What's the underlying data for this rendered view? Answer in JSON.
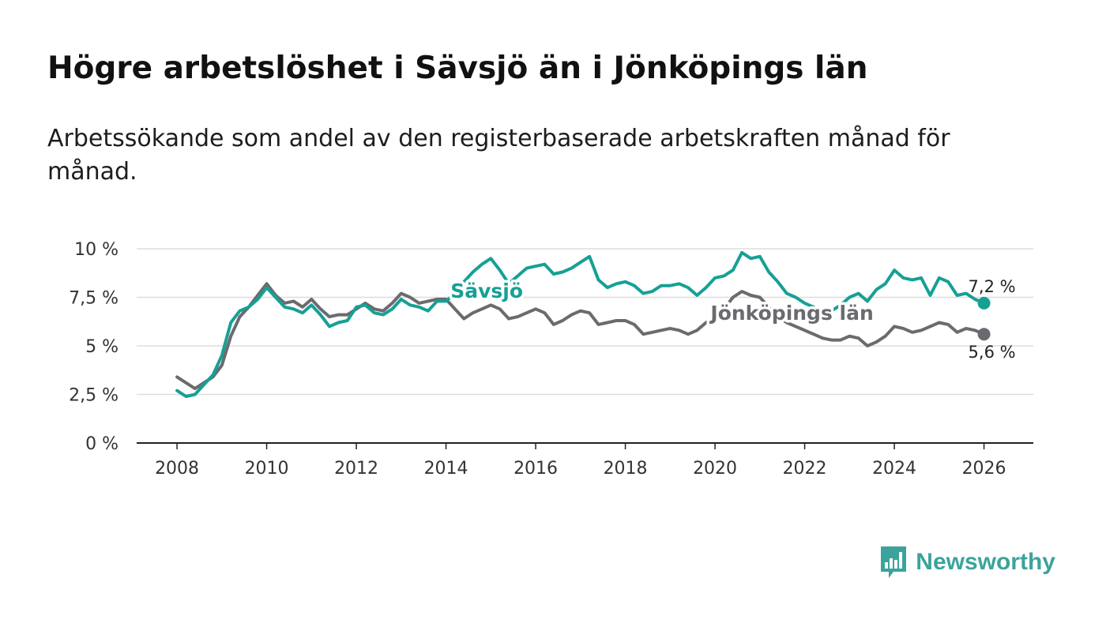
{
  "header": {
    "title": "Högre arbetslöshet i Sävsjö än i Jönköpings län",
    "subtitle": "Arbetssökande som andel av den registerbaserade arbetskraften månad för månad."
  },
  "colors": {
    "savsjo": "#16a095",
    "jonkoping": "#6b6a6e",
    "grid": "#dddddd",
    "axis": "#222222"
  },
  "logo": {
    "name": "Newsworthy",
    "icon": "newsworthy-bar-chart-icon"
  },
  "chart_data": {
    "type": "line",
    "title": "Högre arbetslöshet i Sävsjö än i Jönköpings län",
    "xlabel": "",
    "ylabel": "",
    "xlim": [
      2007.1,
      2027.1
    ],
    "ylim": [
      0,
      10
    ],
    "yticks": [
      {
        "value": 0,
        "label": "0 %"
      },
      {
        "value": 2.5,
        "label": "2,5 %"
      },
      {
        "value": 5,
        "label": "5 %"
      },
      {
        "value": 7.5,
        "label": "7,5 %"
      },
      {
        "value": 10,
        "label": "10 %"
      }
    ],
    "xticks": [
      {
        "value": 2008,
        "label": "2008"
      },
      {
        "value": 2010,
        "label": "2010"
      },
      {
        "value": 2012,
        "label": "2012"
      },
      {
        "value": 2014,
        "label": "2014"
      },
      {
        "value": 2016,
        "label": "2016"
      },
      {
        "value": 2018,
        "label": "2018"
      },
      {
        "value": 2020,
        "label": "2020"
      },
      {
        "value": 2022,
        "label": "2022"
      },
      {
        "value": 2024,
        "label": "2024"
      },
      {
        "value": 2026,
        "label": "2026"
      }
    ],
    "grid": true,
    "series": [
      {
        "name": "Sävsjö",
        "end_label": "7,2 %",
        "points": [
          [
            2008.0,
            2.7
          ],
          [
            2008.2,
            2.4
          ],
          [
            2008.4,
            2.5
          ],
          [
            2008.6,
            3.0
          ],
          [
            2008.8,
            3.5
          ],
          [
            2009.0,
            4.5
          ],
          [
            2009.2,
            6.2
          ],
          [
            2009.4,
            6.8
          ],
          [
            2009.6,
            7.0
          ],
          [
            2009.8,
            7.4
          ],
          [
            2010.0,
            8.0
          ],
          [
            2010.2,
            7.5
          ],
          [
            2010.4,
            7.0
          ],
          [
            2010.6,
            6.9
          ],
          [
            2010.8,
            6.7
          ],
          [
            2011.0,
            7.1
          ],
          [
            2011.2,
            6.6
          ],
          [
            2011.4,
            6.0
          ],
          [
            2011.6,
            6.2
          ],
          [
            2011.8,
            6.3
          ],
          [
            2012.0,
            7.0
          ],
          [
            2012.2,
            7.1
          ],
          [
            2012.4,
            6.7
          ],
          [
            2012.6,
            6.6
          ],
          [
            2012.8,
            6.9
          ],
          [
            2013.0,
            7.4
          ],
          [
            2013.2,
            7.1
          ],
          [
            2013.4,
            7.0
          ],
          [
            2013.6,
            6.8
          ],
          [
            2013.8,
            7.3
          ],
          [
            2014.0,
            7.3
          ],
          [
            2014.2,
            7.7
          ],
          [
            2014.4,
            8.3
          ],
          [
            2014.6,
            8.8
          ],
          [
            2014.8,
            9.2
          ],
          [
            2015.0,
            9.5
          ],
          [
            2015.2,
            8.9
          ],
          [
            2015.4,
            8.2
          ],
          [
            2015.6,
            8.6
          ],
          [
            2015.8,
            9.0
          ],
          [
            2016.0,
            9.1
          ],
          [
            2016.2,
            9.2
          ],
          [
            2016.4,
            8.7
          ],
          [
            2016.6,
            8.8
          ],
          [
            2016.8,
            9.0
          ],
          [
            2017.0,
            9.3
          ],
          [
            2017.2,
            9.6
          ],
          [
            2017.4,
            8.4
          ],
          [
            2017.6,
            8.0
          ],
          [
            2017.8,
            8.2
          ],
          [
            2018.0,
            8.3
          ],
          [
            2018.2,
            8.1
          ],
          [
            2018.4,
            7.7
          ],
          [
            2018.6,
            7.8
          ],
          [
            2018.8,
            8.1
          ],
          [
            2019.0,
            8.1
          ],
          [
            2019.2,
            8.2
          ],
          [
            2019.4,
            8.0
          ],
          [
            2019.6,
            7.6
          ],
          [
            2019.8,
            8.0
          ],
          [
            2020.0,
            8.5
          ],
          [
            2020.2,
            8.6
          ],
          [
            2020.4,
            8.9
          ],
          [
            2020.6,
            9.8
          ],
          [
            2020.8,
            9.5
          ],
          [
            2021.0,
            9.6
          ],
          [
            2021.2,
            8.8
          ],
          [
            2021.4,
            8.3
          ],
          [
            2021.6,
            7.7
          ],
          [
            2021.8,
            7.5
          ],
          [
            2022.0,
            7.2
          ],
          [
            2022.2,
            7.0
          ],
          [
            2022.4,
            6.6
          ],
          [
            2022.6,
            6.8
          ],
          [
            2022.8,
            7.1
          ],
          [
            2023.0,
            7.5
          ],
          [
            2023.2,
            7.7
          ],
          [
            2023.4,
            7.3
          ],
          [
            2023.6,
            7.9
          ],
          [
            2023.8,
            8.2
          ],
          [
            2024.0,
            8.9
          ],
          [
            2024.2,
            8.5
          ],
          [
            2024.4,
            8.4
          ],
          [
            2024.6,
            8.5
          ],
          [
            2024.8,
            7.6
          ],
          [
            2025.0,
            8.5
          ],
          [
            2025.2,
            8.3
          ],
          [
            2025.4,
            7.6
          ],
          [
            2025.6,
            7.7
          ],
          [
            2025.8,
            7.4
          ],
          [
            2026.0,
            7.2
          ]
        ]
      },
      {
        "name": "Jönköpings län",
        "end_label": "5,6 %",
        "points": [
          [
            2008.0,
            3.4
          ],
          [
            2008.2,
            3.1
          ],
          [
            2008.4,
            2.8
          ],
          [
            2008.6,
            3.1
          ],
          [
            2008.8,
            3.4
          ],
          [
            2009.0,
            4.0
          ],
          [
            2009.2,
            5.5
          ],
          [
            2009.4,
            6.5
          ],
          [
            2009.6,
            7.0
          ],
          [
            2009.8,
            7.6
          ],
          [
            2010.0,
            8.2
          ],
          [
            2010.2,
            7.6
          ],
          [
            2010.4,
            7.2
          ],
          [
            2010.6,
            7.3
          ],
          [
            2010.8,
            7.0
          ],
          [
            2011.0,
            7.4
          ],
          [
            2011.2,
            6.9
          ],
          [
            2011.4,
            6.5
          ],
          [
            2011.6,
            6.6
          ],
          [
            2011.8,
            6.6
          ],
          [
            2012.0,
            6.9
          ],
          [
            2012.2,
            7.2
          ],
          [
            2012.4,
            6.9
          ],
          [
            2012.6,
            6.8
          ],
          [
            2012.8,
            7.2
          ],
          [
            2013.0,
            7.7
          ],
          [
            2013.2,
            7.5
          ],
          [
            2013.4,
            7.2
          ],
          [
            2013.6,
            7.3
          ],
          [
            2013.8,
            7.4
          ],
          [
            2014.0,
            7.4
          ],
          [
            2014.2,
            6.9
          ],
          [
            2014.4,
            6.4
          ],
          [
            2014.6,
            6.7
          ],
          [
            2014.8,
            6.9
          ],
          [
            2015.0,
            7.1
          ],
          [
            2015.2,
            6.9
          ],
          [
            2015.4,
            6.4
          ],
          [
            2015.6,
            6.5
          ],
          [
            2015.8,
            6.7
          ],
          [
            2016.0,
            6.9
          ],
          [
            2016.2,
            6.7
          ],
          [
            2016.4,
            6.1
          ],
          [
            2016.6,
            6.3
          ],
          [
            2016.8,
            6.6
          ],
          [
            2017.0,
            6.8
          ],
          [
            2017.2,
            6.7
          ],
          [
            2017.4,
            6.1
          ],
          [
            2017.6,
            6.2
          ],
          [
            2017.8,
            6.3
          ],
          [
            2018.0,
            6.3
          ],
          [
            2018.2,
            6.1
          ],
          [
            2018.4,
            5.6
          ],
          [
            2018.6,
            5.7
          ],
          [
            2018.8,
            5.8
          ],
          [
            2019.0,
            5.9
          ],
          [
            2019.2,
            5.8
          ],
          [
            2019.4,
            5.6
          ],
          [
            2019.6,
            5.8
          ],
          [
            2019.8,
            6.2
          ],
          [
            2020.0,
            6.5
          ],
          [
            2020.2,
            6.9
          ],
          [
            2020.4,
            7.5
          ],
          [
            2020.6,
            7.8
          ],
          [
            2020.8,
            7.6
          ],
          [
            2021.0,
            7.5
          ],
          [
            2021.2,
            7.0
          ],
          [
            2021.4,
            6.5
          ],
          [
            2021.6,
            6.2
          ],
          [
            2021.8,
            6.0
          ],
          [
            2022.0,
            5.8
          ],
          [
            2022.2,
            5.6
          ],
          [
            2022.4,
            5.4
          ],
          [
            2022.6,
            5.3
          ],
          [
            2022.8,
            5.3
          ],
          [
            2023.0,
            5.5
          ],
          [
            2023.2,
            5.4
          ],
          [
            2023.4,
            5.0
          ],
          [
            2023.6,
            5.2
          ],
          [
            2023.8,
            5.5
          ],
          [
            2024.0,
            6.0
          ],
          [
            2024.2,
            5.9
          ],
          [
            2024.4,
            5.7
          ],
          [
            2024.6,
            5.8
          ],
          [
            2024.8,
            6.0
          ],
          [
            2025.0,
            6.2
          ],
          [
            2025.2,
            6.1
          ],
          [
            2025.4,
            5.7
          ],
          [
            2025.6,
            5.9
          ],
          [
            2025.8,
            5.8
          ],
          [
            2026.0,
            5.6
          ]
        ]
      }
    ],
    "annotations": [
      {
        "text": "Sävsjö",
        "series": "Sävsjö",
        "x": 2014.1,
        "y": 7.85
      },
      {
        "text": "Jönköpings län",
        "series": "Jönköpings län",
        "x": 2019.9,
        "y": 6.7
      }
    ],
    "legend": "inline labels"
  }
}
